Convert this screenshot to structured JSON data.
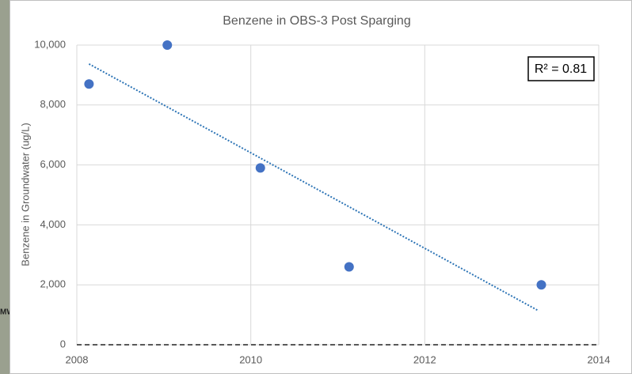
{
  "chart_data": {
    "type": "scatter",
    "title": "Benzene in OBS-3 Post Sparging",
    "y_label": "Benzene in Groundwater (ug/L)",
    "x": [
      2008.14,
      2009.04,
      2010.11,
      2011.13,
      2013.34
    ],
    "series": [
      {
        "color": "#4472c4",
        "values": [
          8700,
          10000,
          5900,
          2600,
          2000
        ]
      }
    ],
    "trendline": {
      "color": "#2e75b6",
      "x": [
        2008.14,
        2013.31
      ],
      "values": [
        9370,
        1130
      ]
    },
    "annotation": "R² = 0.81",
    "hline": 0,
    "xlim": [
      2008,
      2014
    ],
    "xticks": [
      2008,
      2010,
      2012,
      2014
    ],
    "ylim": [
      0,
      10000
    ],
    "yticks": [
      0,
      {
        "value": 2000,
        "label": "2,000"
      },
      {
        "value": 4000,
        "label": "4,000"
      },
      {
        "value": 6000,
        "label": "6,000"
      },
      {
        "value": 8000,
        "label": "8,000"
      },
      {
        "value": 10000,
        "label": "10,000"
      }
    ],
    "grid": true
  },
  "background_label": "MW"
}
